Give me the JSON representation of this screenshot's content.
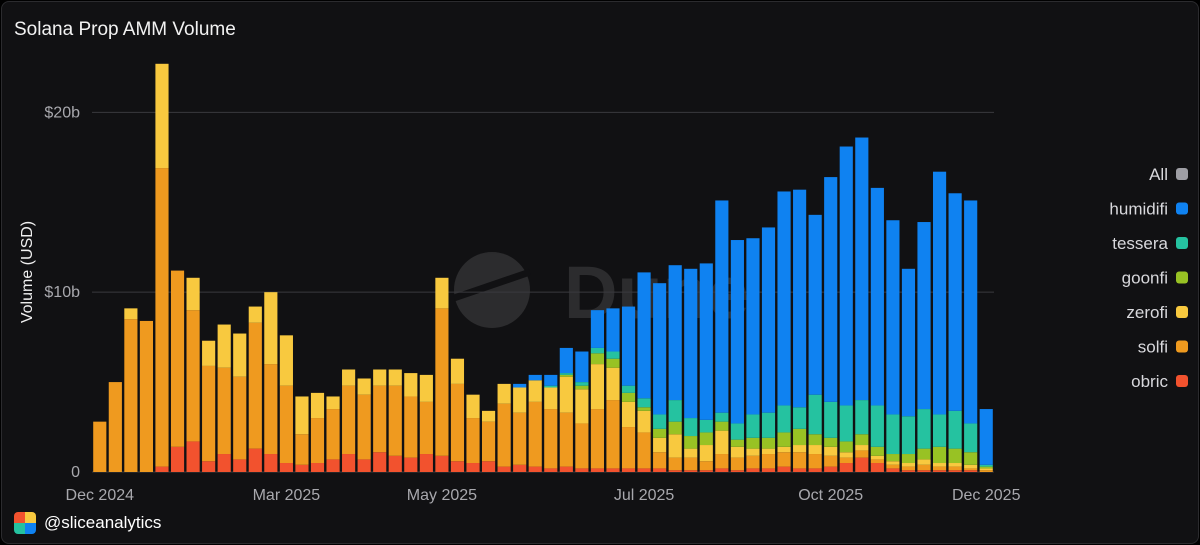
{
  "header": {
    "title": "Solana Prop AMM Volume"
  },
  "attribution": {
    "handle": "@sliceanalytics"
  },
  "watermark": {
    "text": "Dune"
  },
  "chart_data": {
    "type": "bar",
    "stacked": true,
    "title": "Solana Prop AMM Volume",
    "xlabel": "",
    "ylabel": "Volume (USD)",
    "ylim": [
      0,
      22.8
    ],
    "y_unit": "billion USD",
    "y_ticks": [
      {
        "value": 0,
        "label": "0"
      },
      {
        "value": 10,
        "label": "$10b"
      },
      {
        "value": 20,
        "label": "$20b"
      }
    ],
    "x_ticks": [
      {
        "index": 0,
        "label": "Dec 2024"
      },
      {
        "index": 12,
        "label": "Mar 2025"
      },
      {
        "index": 22,
        "label": "May 2025"
      },
      {
        "index": 35,
        "label": "Jul 2025"
      },
      {
        "index": 47,
        "label": "Oct 2025"
      },
      {
        "index": 57,
        "label": "Dec 2025"
      }
    ],
    "grid": true,
    "legend_position": "right",
    "legend_all_label": "All",
    "legend_all_color": "#9e9ea4",
    "categories": [
      "2024-12-02",
      "2024-12-09",
      "2024-12-16",
      "2024-12-23",
      "2024-12-30",
      "2025-01-06",
      "2025-01-13",
      "2025-01-20",
      "2025-01-27",
      "2025-02-03",
      "2025-02-10",
      "2025-02-17",
      "2025-02-24",
      "2025-03-03",
      "2025-03-10",
      "2025-03-17",
      "2025-03-24",
      "2025-03-31",
      "2025-04-07",
      "2025-04-14",
      "2025-04-21",
      "2025-04-28",
      "2025-05-05",
      "2025-05-12",
      "2025-05-19",
      "2025-05-26",
      "2025-06-02",
      "2025-06-09",
      "2025-06-16",
      "2025-06-23",
      "2025-06-30",
      "2025-07-07",
      "2025-07-14",
      "2025-07-21",
      "2025-07-28",
      "2025-08-04",
      "2025-08-11",
      "2025-08-18",
      "2025-08-25",
      "2025-09-01",
      "2025-09-08",
      "2025-09-15",
      "2025-09-22",
      "2025-09-29",
      "2025-10-06",
      "2025-10-13",
      "2025-10-20",
      "2025-10-27",
      "2025-11-03",
      "2025-11-10",
      "2025-11-17",
      "2025-11-24",
      "2025-12-01",
      "2025-12-08",
      "2025-12-15",
      "2025-12-22",
      "2025-12-29",
      "2026-01-05"
    ],
    "series": [
      {
        "name": "obric",
        "color": "#f2522e",
        "values": [
          0,
          0,
          0,
          0,
          0.3,
          1.4,
          1.7,
          0.6,
          1,
          0.7,
          1.3,
          1,
          0.5,
          0.4,
          0.5,
          0.7,
          1,
          0.7,
          1.1,
          0.9,
          0.8,
          1,
          0.9,
          0.6,
          0.5,
          0.6,
          0.3,
          0.4,
          0.3,
          0.2,
          0.3,
          0.2,
          0.2,
          0.2,
          0.2,
          0.2,
          0.2,
          0.1,
          0.1,
          0.1,
          0.2,
          0.1,
          0.2,
          0.2,
          0.3,
          0.2,
          0.2,
          0.3,
          0.5,
          0.8,
          0.5,
          0.2,
          0.1,
          0.1,
          0.1,
          0.1,
          0.1,
          0
        ]
      },
      {
        "name": "solfi",
        "color": "#ef9a1f",
        "values": [
          2.8,
          5,
          8.5,
          8.4,
          16.6,
          9.8,
          7.3,
          5.3,
          4.8,
          4.6,
          7,
          5,
          4.3,
          1.7,
          2.5,
          2.8,
          3.8,
          3.6,
          3.7,
          3.9,
          3.4,
          2.9,
          8.2,
          4.3,
          2.5,
          2.2,
          3.5,
          2.9,
          3.6,
          3.3,
          3,
          2.5,
          3.3,
          3.8,
          2.3,
          2,
          0.9,
          0.7,
          0.7,
          0.5,
          0.8,
          0.7,
          0.7,
          0.8,
          0.8,
          0.9,
          0.8,
          0.6,
          0.3,
          0.4,
          0.2,
          0.2,
          0.2,
          0.3,
          0.2,
          0.2,
          0.1,
          0.1
        ]
      },
      {
        "name": "zerofi",
        "color": "#f8c93f",
        "values": [
          0,
          0,
          0.6,
          0,
          5.8,
          0,
          1.8,
          1.4,
          2.4,
          2.4,
          0.9,
          4,
          2.8,
          2.1,
          1.4,
          0.7,
          0.9,
          0.9,
          0.9,
          0.9,
          1.3,
          1.5,
          1.7,
          1.4,
          1.3,
          0.6,
          1.1,
          1.4,
          1.2,
          1.2,
          2,
          1.9,
          2.5,
          1.8,
          1.4,
          1.2,
          0.8,
          1.3,
          0.5,
          0.9,
          1.3,
          0.6,
          0.4,
          0.3,
          0.3,
          0.4,
          0.5,
          0.5,
          0.3,
          0.3,
          0.2,
          0.2,
          0.2,
          0.3,
          0.2,
          0.2,
          0.2,
          0.1
        ]
      },
      {
        "name": "goonfi",
        "color": "#98c224",
        "values": [
          0,
          0,
          0,
          0,
          0,
          0,
          0,
          0,
          0,
          0,
          0,
          0,
          0,
          0,
          0,
          0,
          0,
          0,
          0,
          0,
          0,
          0,
          0,
          0,
          0,
          0,
          0,
          0,
          0,
          0,
          0.1,
          0.2,
          0.6,
          0.5,
          0.5,
          0.2,
          0.5,
          0.7,
          0.7,
          0.7,
          0.5,
          0.4,
          0.6,
          0.6,
          0.8,
          0.9,
          0.6,
          0.5,
          0.6,
          0.6,
          0.5,
          0.4,
          0.5,
          0.6,
          0.9,
          0.8,
          0.7,
          0.1
        ]
      },
      {
        "name": "tessera",
        "color": "#25c2a0",
        "values": [
          0,
          0,
          0,
          0,
          0,
          0,
          0,
          0,
          0,
          0,
          0,
          0,
          0,
          0,
          0,
          0,
          0,
          0,
          0,
          0,
          0,
          0,
          0,
          0,
          0,
          0,
          0,
          0,
          0,
          0.1,
          0.1,
          0.2,
          0.3,
          0.4,
          0.4,
          0.5,
          0.8,
          1.2,
          1,
          0.7,
          0.5,
          0.9,
          1.3,
          1.4,
          1.5,
          1.2,
          2.2,
          2,
          2,
          1.9,
          2.3,
          2.2,
          2.1,
          2.2,
          1.8,
          2.1,
          1.6,
          0.1
        ]
      },
      {
        "name": "humidifi",
        "color": "#0f82f1",
        "values": [
          0,
          0,
          0,
          0,
          0,
          0,
          0,
          0,
          0,
          0,
          0,
          0,
          0,
          0,
          0,
          0,
          0,
          0,
          0,
          0,
          0,
          0,
          0,
          0,
          0,
          0,
          0,
          0.2,
          0.3,
          0.6,
          1.4,
          1.7,
          2.1,
          2.4,
          4.4,
          7,
          7.3,
          7.5,
          8.3,
          8.7,
          11.8,
          10.2,
          9.8,
          10.3,
          11.9,
          12.1,
          10,
          12.5,
          14.4,
          14.6,
          12.1,
          10.8,
          8.2,
          10.4,
          13.5,
          12.1,
          12.4,
          3.1
        ]
      }
    ]
  }
}
